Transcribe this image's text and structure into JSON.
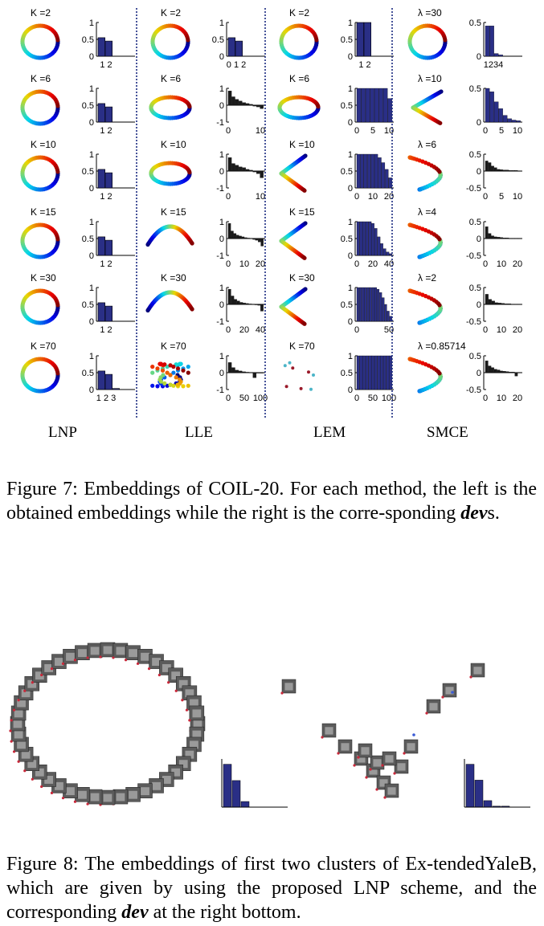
{
  "figure7": {
    "methods": [
      {
        "name": "LNP",
        "rows": [
          {
            "param": "K =2",
            "embed": "ring",
            "ylim": [
              0,
              1
            ],
            "yticks": [
              "1",
              "0.5",
              "0"
            ],
            "values": [
              0.55,
              0.45
            ],
            "xticks": [
              "1 2"
            ]
          },
          {
            "param": "K =6",
            "embed": "ring",
            "ylim": [
              0,
              1
            ],
            "yticks": [
              "1",
              "0.5",
              "0"
            ],
            "values": [
              0.55,
              0.45
            ],
            "xticks": [
              "1 2"
            ]
          },
          {
            "param": "K =10",
            "embed": "ring",
            "ylim": [
              0,
              1
            ],
            "yticks": [
              "1",
              "0.5",
              "0"
            ],
            "values": [
              0.55,
              0.45
            ],
            "xticks": [
              "1 2"
            ]
          },
          {
            "param": "K =15",
            "embed": "ring",
            "ylim": [
              0,
              1
            ],
            "yticks": [
              "1",
              "0.5",
              "0"
            ],
            "values": [
              0.55,
              0.45
            ],
            "xticks": [
              "1 2"
            ]
          },
          {
            "param": "K =30",
            "embed": "ring",
            "ylim": [
              0,
              1
            ],
            "yticks": [
              "1",
              "0.5",
              "0"
            ],
            "values": [
              0.55,
              0.45
            ],
            "xticks": [
              "1 2"
            ]
          },
          {
            "param": "K =70",
            "embed": "ring",
            "ylim": [
              0,
              1
            ],
            "yticks": [
              "1",
              "0.5",
              "0"
            ],
            "values": [
              0.55,
              0.45,
              0.03
            ],
            "xticks": [
              "1 2 3"
            ]
          }
        ]
      },
      {
        "name": "LLE",
        "rows": [
          {
            "param": "K =2",
            "embed": "ring",
            "ylim": [
              0,
              1
            ],
            "yticks": [
              "1",
              "0.5",
              "0"
            ],
            "values": [
              0.55,
              0.45
            ],
            "xticks": [
              "0 1 2"
            ]
          },
          {
            "param": "K =6",
            "embed": "ellipse",
            "ylim": [
              -1,
              1
            ],
            "yticks": [
              "1",
              "0",
              "-1"
            ],
            "values": [
              0.85,
              0.5,
              0.35,
              0.25,
              0.15,
              0.1,
              0.05,
              -0.05,
              -0.1,
              -0.2
            ],
            "xticks": [
              "0",
              "10"
            ]
          },
          {
            "param": "K =10",
            "embed": "ellipse",
            "ylim": [
              -1,
              1
            ],
            "yticks": [
              "1",
              "0",
              "-1"
            ],
            "values": [
              0.8,
              0.45,
              0.35,
              0.25,
              0.2,
              0.1,
              0.05,
              -0.05,
              -0.15,
              -0.4
            ],
            "xticks": [
              "0",
              "10"
            ]
          },
          {
            "param": "K =15",
            "embed": "arc",
            "ylim": [
              -1,
              1
            ],
            "yticks": [
              "1",
              "0",
              "-1"
            ],
            "values": [
              0.9,
              0.45,
              0.3,
              0.2,
              0.15,
              0.1,
              0.05,
              0.03,
              0.02,
              -0.05,
              -0.1,
              -0.2,
              -0.45
            ],
            "xticks": [
              "0",
              "10",
              "20"
            ]
          },
          {
            "param": "K =30",
            "embed": "arc",
            "ylim": [
              -1,
              1
            ],
            "yticks": [
              "1",
              "0",
              "-1"
            ],
            "values": [
              0.9,
              0.5,
              0.3,
              0.2,
              0.12,
              0.08,
              0.05,
              0.03,
              0.02,
              0.01,
              -0.05,
              -0.4
            ],
            "xticks": [
              "0",
              "20",
              "40"
            ]
          },
          {
            "param": "K =70",
            "embed": "cluster",
            "ylim": [
              -1,
              1
            ],
            "yticks": [
              "1",
              "0",
              "-1"
            ],
            "values": [
              0.6,
              0.3,
              0.15,
              0.1,
              0.05,
              0.03,
              0.02,
              -0.3,
              0.01,
              0.01
            ],
            "xticks": [
              "0",
              "50",
              "100"
            ]
          }
        ]
      },
      {
        "name": "LEM",
        "rows": [
          {
            "param": "K =2",
            "embed": "ring",
            "ylim": [
              0,
              1
            ],
            "yticks": [
              "1",
              "0.5",
              "0"
            ],
            "values": [
              1,
              1
            ],
            "xticks": [
              "1 2"
            ]
          },
          {
            "param": "K =6",
            "embed": "ellipse",
            "ylim": [
              0,
              1
            ],
            "yticks": [
              "1",
              "0.5",
              "0"
            ],
            "values": [
              1,
              1,
              1,
              1,
              1,
              1,
              1,
              0.7
            ],
            "xticks": [
              "0",
              "5",
              "10"
            ]
          },
          {
            "param": "K =10",
            "embed": "vshape",
            "ylim": [
              0,
              1
            ],
            "yticks": [
              "1",
              "0.5",
              "0"
            ],
            "values": [
              1,
              1,
              1,
              1,
              1,
              1,
              0.9,
              0.75,
              0.55,
              0.3
            ],
            "xticks": [
              "0",
              "10",
              "20"
            ]
          },
          {
            "param": "K =15",
            "embed": "vshape",
            "ylim": [
              0,
              1
            ],
            "yticks": [
              "1",
              "0.5",
              "0"
            ],
            "values": [
              1,
              1,
              1,
              1,
              1,
              0.95,
              0.8,
              0.55,
              0.35,
              0.2,
              0.1,
              0.05
            ],
            "xticks": [
              "0",
              "20",
              "40"
            ]
          },
          {
            "param": "K =30",
            "embed": "vshape",
            "ylim": [
              0,
              1
            ],
            "yticks": [
              "1",
              "0.5",
              "0"
            ],
            "values": [
              1,
              1,
              1,
              1,
              1,
              1,
              1,
              1,
              0.95,
              0.85,
              0.7,
              0.5,
              0.3,
              0.15
            ],
            "xticks": [
              "0",
              "50"
            ]
          },
          {
            "param": "K =70",
            "embed": "sparse",
            "ylim": [
              0,
              1
            ],
            "yticks": [
              "1",
              "0.5",
              "0"
            ],
            "values": [
              1,
              1,
              1,
              1,
              1,
              1,
              1,
              1,
              1,
              1,
              1,
              1
            ],
            "xticks": [
              "0",
              "50",
              "100"
            ]
          }
        ]
      },
      {
        "name": "SMCE",
        "rows": [
          {
            "param": "λ =30",
            "embed": "ring",
            "ylim": [
              0,
              0.5
            ],
            "yticks": [
              "0.5",
              "0"
            ],
            "values": [
              0.45,
              0.45,
              0.04,
              0.02
            ],
            "xticks": [
              "1234"
            ]
          },
          {
            "param": "λ =10",
            "embed": "parabola",
            "ylim": [
              0,
              0.5
            ],
            "yticks": [
              "0.5",
              "0"
            ],
            "values": [
              0.5,
              0.45,
              0.3,
              0.2,
              0.1,
              0.05,
              0.03,
              0.02
            ],
            "xticks": [
              "0",
              "5",
              "10"
            ]
          },
          {
            "param": "λ =6",
            "embed": "loop",
            "ylim": [
              -0.5,
              0.5
            ],
            "yticks": [
              "0.5",
              "0",
              "-0.5"
            ],
            "values": [
              0.3,
              0.25,
              0.15,
              0.1,
              0.05,
              0.04,
              0.03,
              0.03,
              0.02,
              0.02,
              0.02,
              0.01
            ],
            "xticks": [
              "0",
              "5",
              "10"
            ]
          },
          {
            "param": "λ =4",
            "embed": "loop",
            "ylim": [
              -0.5,
              0.5
            ],
            "yticks": [
              "0.5",
              "0",
              "-0.5"
            ],
            "values": [
              0.35,
              0.15,
              0.08,
              0.05,
              0.04,
              0.03,
              0.02,
              0.02,
              0.01,
              0.01,
              0.01,
              0.01
            ],
            "xticks": [
              "0",
              "10",
              "20"
            ]
          },
          {
            "param": "λ =2",
            "embed": "loop",
            "ylim": [
              -0.5,
              0.5
            ],
            "yticks": [
              "0.5",
              "0",
              "-0.5"
            ],
            "values": [
              0.3,
              0.15,
              0.1,
              0.05,
              0.04,
              0.03,
              0.02,
              0.02,
              0.01,
              0.01,
              0.01
            ],
            "xticks": [
              "0",
              "10",
              "20"
            ]
          },
          {
            "param": "λ =0.85714",
            "embed": "loop",
            "ylim": [
              -0.5,
              0.5
            ],
            "yticks": [
              "0.5",
              "0",
              "-0.5"
            ],
            "values": [
              0.35,
              0.2,
              0.15,
              0.1,
              0.08,
              0.05,
              0.04,
              0.03,
              0.02,
              0.02,
              -0.1,
              0.01
            ],
            "xticks": [
              "0",
              "10",
              "20"
            ]
          }
        ]
      }
    ],
    "caption_prefix": "Figure 7: Embeddings of COIL-20. For each method, the left is the obtained embeddings while the right is the corre-sponding ",
    "caption_bold": "dev",
    "caption_suffix": "s."
  },
  "figure8": {
    "left_bars": [
      0.92,
      0.57,
      0.12
    ],
    "right_bars": [
      0.92,
      0.58,
      0.14,
      0.02,
      0.02
    ],
    "caption_prefix": "Figure 8: The embeddings of first two clusters of Ex-tendedYaleB, which are given by using the proposed LNP scheme, and the corresponding ",
    "caption_bold": "dev",
    "caption_suffix": " at the right bottom."
  }
}
